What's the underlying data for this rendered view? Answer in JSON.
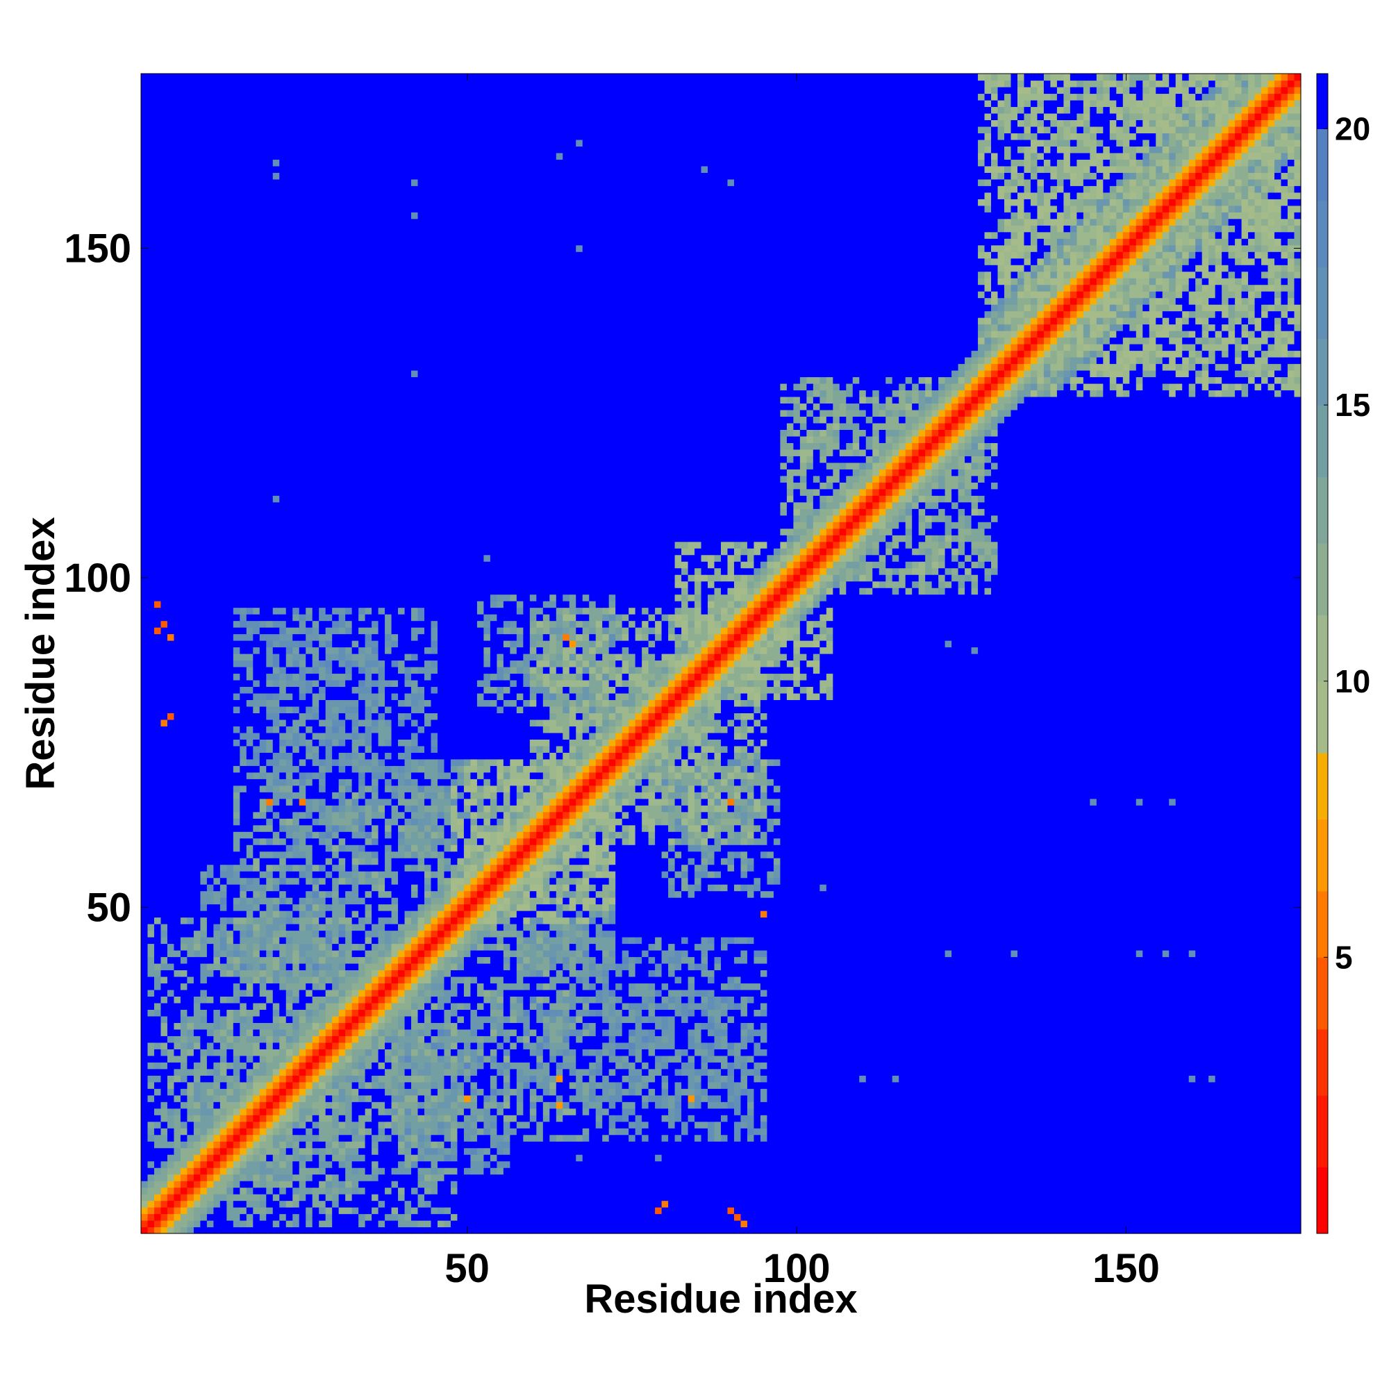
{
  "chart_data": {
    "type": "heatmap",
    "title": "",
    "xlabel": "Residue index",
    "ylabel": "Residue index",
    "n_residues": 176,
    "xlim": [
      1,
      176
    ],
    "ylim": [
      1,
      176
    ],
    "x_ticks": [
      50,
      100,
      150
    ],
    "y_ticks": [
      50,
      100,
      150
    ],
    "x_tick_labels": [
      "50",
      "100",
      "150"
    ],
    "y_tick_labels": [
      "50",
      "100",
      "150"
    ],
    "colorbar": {
      "range": [
        0,
        21
      ],
      "ticks": [
        5,
        10,
        15,
        20
      ],
      "tick_labels": [
        "5",
        "10",
        "15",
        "20"
      ],
      "bins": [
        {
          "max": 1.2,
          "color": "#ff0000"
        },
        {
          "max": 2.5,
          "color": "#ff1a00"
        },
        {
          "max": 3.7,
          "color": "#ff3300"
        },
        {
          "max": 5.0,
          "color": "#ff5a00"
        },
        {
          "max": 6.2,
          "color": "#ff7b00"
        },
        {
          "max": 7.5,
          "color": "#ff9800"
        },
        {
          "max": 8.7,
          "color": "#f7ae00"
        },
        {
          "max": 10.0,
          "color": "#a6bb8a"
        },
        {
          "max": 11.2,
          "color": "#9cb88c"
        },
        {
          "max": 12.5,
          "color": "#8eae92"
        },
        {
          "max": 13.7,
          "color": "#80a69a"
        },
        {
          "max": 15.0,
          "color": "#739fa4"
        },
        {
          "max": 16.2,
          "color": "#6a97ad"
        },
        {
          "max": 17.5,
          "color": "#628fb6"
        },
        {
          "max": 18.7,
          "color": "#5c88bd"
        },
        {
          "max": 20.0,
          "color": "#5580c2"
        },
        {
          "max": 21.0,
          "color": "#0000ff"
        }
      ]
    },
    "background_value": 21,
    "diagonal_band": [
      {
        "offset": 0,
        "value": 1
      },
      {
        "offset": 1,
        "value": 3
      },
      {
        "offset": 2,
        "value": 5.5
      },
      {
        "offset": 3,
        "value": 8
      },
      {
        "offset": 4,
        "value": 11
      },
      {
        "offset": 5,
        "value": 12
      },
      {
        "offset": 6,
        "value": 13.5
      },
      {
        "offset": 7,
        "value": 15
      }
    ],
    "contact_regions": [
      {
        "x": [
          2,
          32
        ],
        "y": [
          6,
          48
        ],
        "value": 14
      },
      {
        "x": [
          15,
          48
        ],
        "y": [
          28,
          68
        ],
        "value": 14
      },
      {
        "x": [
          50,
          72
        ],
        "y": [
          48,
          72
        ],
        "value": 11
      },
      {
        "x": [
          60,
          88
        ],
        "y": [
          62,
          95
        ],
        "value": 12
      },
      {
        "x": [
          82,
          100
        ],
        "y": [
          85,
          105
        ],
        "value": 11
      },
      {
        "x": [
          98,
          128
        ],
        "y": [
          100,
          130
        ],
        "value": 13
      },
      {
        "x": [
          128,
          176
        ],
        "y": [
          132,
          176
        ],
        "value": 11
      },
      {
        "x": [
          15,
          45
        ],
        "y": [
          70,
          95
        ],
        "value": 16
      },
      {
        "x": [
          40,
          62
        ],
        "y": [
          60,
          72
        ],
        "value": 15
      },
      {
        "x": [
          52,
          72
        ],
        "y": [
          80,
          97
        ],
        "value": 15
      },
      {
        "x": [
          78,
          95
        ],
        "y": [
          62,
          72
        ],
        "value": 15
      },
      {
        "x": [
          58,
          72
        ],
        "y": [
          20,
          48
        ],
        "value": 16
      },
      {
        "x": [
          75,
          92
        ],
        "y": [
          20,
          38
        ],
        "value": 16
      },
      {
        "x": [
          40,
          56
        ],
        "y": [
          10,
          32
        ],
        "value": 16
      }
    ],
    "hot_spots": [
      {
        "x": 3,
        "y": 96,
        "value": 4
      },
      {
        "x": 3,
        "y": 92,
        "value": 4
      },
      {
        "x": 4,
        "y": 93,
        "value": 5
      },
      {
        "x": 5,
        "y": 91,
        "value": 6
      },
      {
        "x": 4,
        "y": 78,
        "value": 6
      },
      {
        "x": 5,
        "y": 79,
        "value": 5
      },
      {
        "x": 79,
        "y": 4,
        "value": 5
      },
      {
        "x": 80,
        "y": 5,
        "value": 6
      },
      {
        "x": 90,
        "y": 4,
        "value": 5
      },
      {
        "x": 91,
        "y": 3,
        "value": 4
      },
      {
        "x": 92,
        "y": 2,
        "value": 6
      },
      {
        "x": 65,
        "y": 91,
        "value": 6
      },
      {
        "x": 66,
        "y": 90,
        "value": 7
      },
      {
        "x": 20,
        "y": 66,
        "value": 6
      },
      {
        "x": 25,
        "y": 66,
        "value": 6
      },
      {
        "x": 90,
        "y": 66,
        "value": 6
      },
      {
        "x": 95,
        "y": 49,
        "value": 6
      },
      {
        "x": 64,
        "y": 20,
        "value": 7
      },
      {
        "x": 64,
        "y": 24,
        "value": 7
      },
      {
        "x": 84,
        "y": 21,
        "value": 7
      },
      {
        "x": 50,
        "y": 21,
        "value": 7
      }
    ],
    "scattered_contacts": [
      {
        "x": 21,
        "y": 163,
        "value": 17
      },
      {
        "x": 21,
        "y": 161,
        "value": 17
      },
      {
        "x": 42,
        "y": 160,
        "value": 17
      },
      {
        "x": 42,
        "y": 155,
        "value": 17
      },
      {
        "x": 64,
        "y": 164,
        "value": 17
      },
      {
        "x": 67,
        "y": 166,
        "value": 17
      },
      {
        "x": 67,
        "y": 150,
        "value": 17
      },
      {
        "x": 86,
        "y": 162,
        "value": 17
      },
      {
        "x": 90,
        "y": 160,
        "value": 17
      },
      {
        "x": 42,
        "y": 131,
        "value": 17
      },
      {
        "x": 21,
        "y": 112,
        "value": 17
      },
      {
        "x": 53,
        "y": 103,
        "value": 17
      },
      {
        "x": 123,
        "y": 90,
        "value": 17
      },
      {
        "x": 127,
        "y": 89,
        "value": 17
      },
      {
        "x": 145,
        "y": 66,
        "value": 17
      },
      {
        "x": 152,
        "y": 66,
        "value": 17
      },
      {
        "x": 157,
        "y": 66,
        "value": 17
      },
      {
        "x": 123,
        "y": 43,
        "value": 17
      },
      {
        "x": 152,
        "y": 43,
        "value": 17
      },
      {
        "x": 156,
        "y": 43,
        "value": 17
      },
      {
        "x": 160,
        "y": 43,
        "value": 17
      },
      {
        "x": 110,
        "y": 24,
        "value": 17
      },
      {
        "x": 115,
        "y": 24,
        "value": 17
      },
      {
        "x": 160,
        "y": 24,
        "value": 17
      },
      {
        "x": 163,
        "y": 24,
        "value": 17
      },
      {
        "x": 104,
        "y": 53,
        "value": 17
      },
      {
        "x": 133,
        "y": 43,
        "value": 17
      },
      {
        "x": 42,
        "y": 11,
        "value": 17
      },
      {
        "x": 48,
        "y": 12,
        "value": 17
      },
      {
        "x": 67,
        "y": 12,
        "value": 17
      },
      {
        "x": 79,
        "y": 12,
        "value": 17
      }
    ]
  }
}
